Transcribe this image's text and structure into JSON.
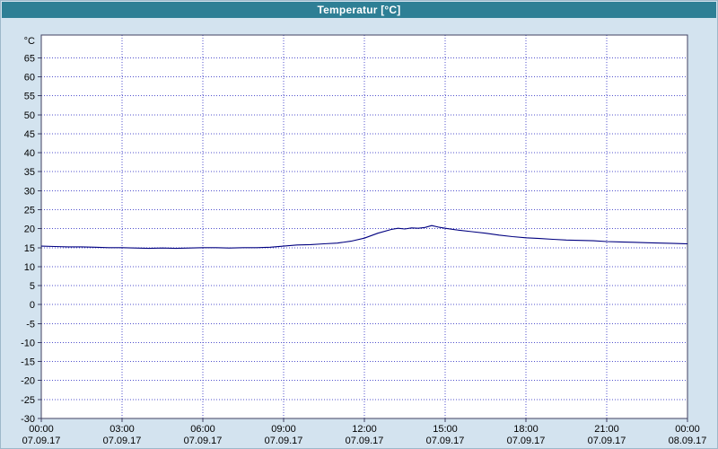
{
  "chart_data": {
    "type": "line",
    "title": "Temperatur [°C]",
    "y_axis_unit": "°C",
    "ylim": [
      -30,
      71
    ],
    "y_tick_step": 5,
    "y_ticks": [
      65,
      60,
      55,
      50,
      45,
      40,
      35,
      30,
      25,
      20,
      15,
      10,
      5,
      0,
      -5,
      -10,
      -15,
      -20,
      -25,
      -30
    ],
    "xlim": [
      0,
      24
    ],
    "x_ticks": [
      {
        "hour": 0,
        "time": "00:00",
        "date": "07.09.17"
      },
      {
        "hour": 3,
        "time": "03:00",
        "date": "07.09.17"
      },
      {
        "hour": 6,
        "time": "06:00",
        "date": "07.09.17"
      },
      {
        "hour": 9,
        "time": "09:00",
        "date": "07.09.17"
      },
      {
        "hour": 12,
        "time": "12:00",
        "date": "07.09.17"
      },
      {
        "hour": 15,
        "time": "15:00",
        "date": "07.09.17"
      },
      {
        "hour": 18,
        "time": "18:00",
        "date": "07.09.17"
      },
      {
        "hour": 21,
        "time": "21:00",
        "date": "07.09.17"
      },
      {
        "hour": 24,
        "time": "00:00",
        "date": "08.09.17"
      }
    ],
    "grid": true,
    "legend": "none",
    "colors": {
      "line": "#000080",
      "grid": "#5050cd",
      "plot_border": "#404060",
      "plot_background": "#ffffff",
      "window_background": "#d3e3ef",
      "titlebar_background": "#2e7f95",
      "titlebar_text": "#ffffff",
      "tick_text": "#000000"
    },
    "series": [
      {
        "name": "Temperatur",
        "x": [
          0,
          0.5,
          1,
          1.5,
          2,
          2.5,
          3,
          3.5,
          4,
          4.5,
          5,
          5.5,
          6,
          6.5,
          7,
          7.5,
          8,
          8.5,
          9,
          9.5,
          10,
          10.5,
          11,
          11.5,
          12,
          12.5,
          13,
          13.25,
          13.5,
          13.75,
          14,
          14.25,
          14.5,
          14.75,
          15,
          15.5,
          16,
          16.5,
          17,
          17.5,
          18,
          18.5,
          19,
          19.5,
          20,
          20.5,
          21,
          21.5,
          22,
          22.5,
          23,
          23.5,
          24
        ],
        "y": [
          15.4,
          15.3,
          15.2,
          15.2,
          15.1,
          15.0,
          15.0,
          14.9,
          14.8,
          14.9,
          14.8,
          14.9,
          15.0,
          15.0,
          14.9,
          15.0,
          15.0,
          15.1,
          15.4,
          15.7,
          15.8,
          16.0,
          16.2,
          16.7,
          17.5,
          18.8,
          19.8,
          20.1,
          19.9,
          20.2,
          20.1,
          20.3,
          20.8,
          20.4,
          20.1,
          19.6,
          19.2,
          18.8,
          18.3,
          17.9,
          17.6,
          17.4,
          17.2,
          17.0,
          16.9,
          16.8,
          16.6,
          16.5,
          16.4,
          16.3,
          16.2,
          16.1,
          16.0
        ]
      }
    ]
  }
}
